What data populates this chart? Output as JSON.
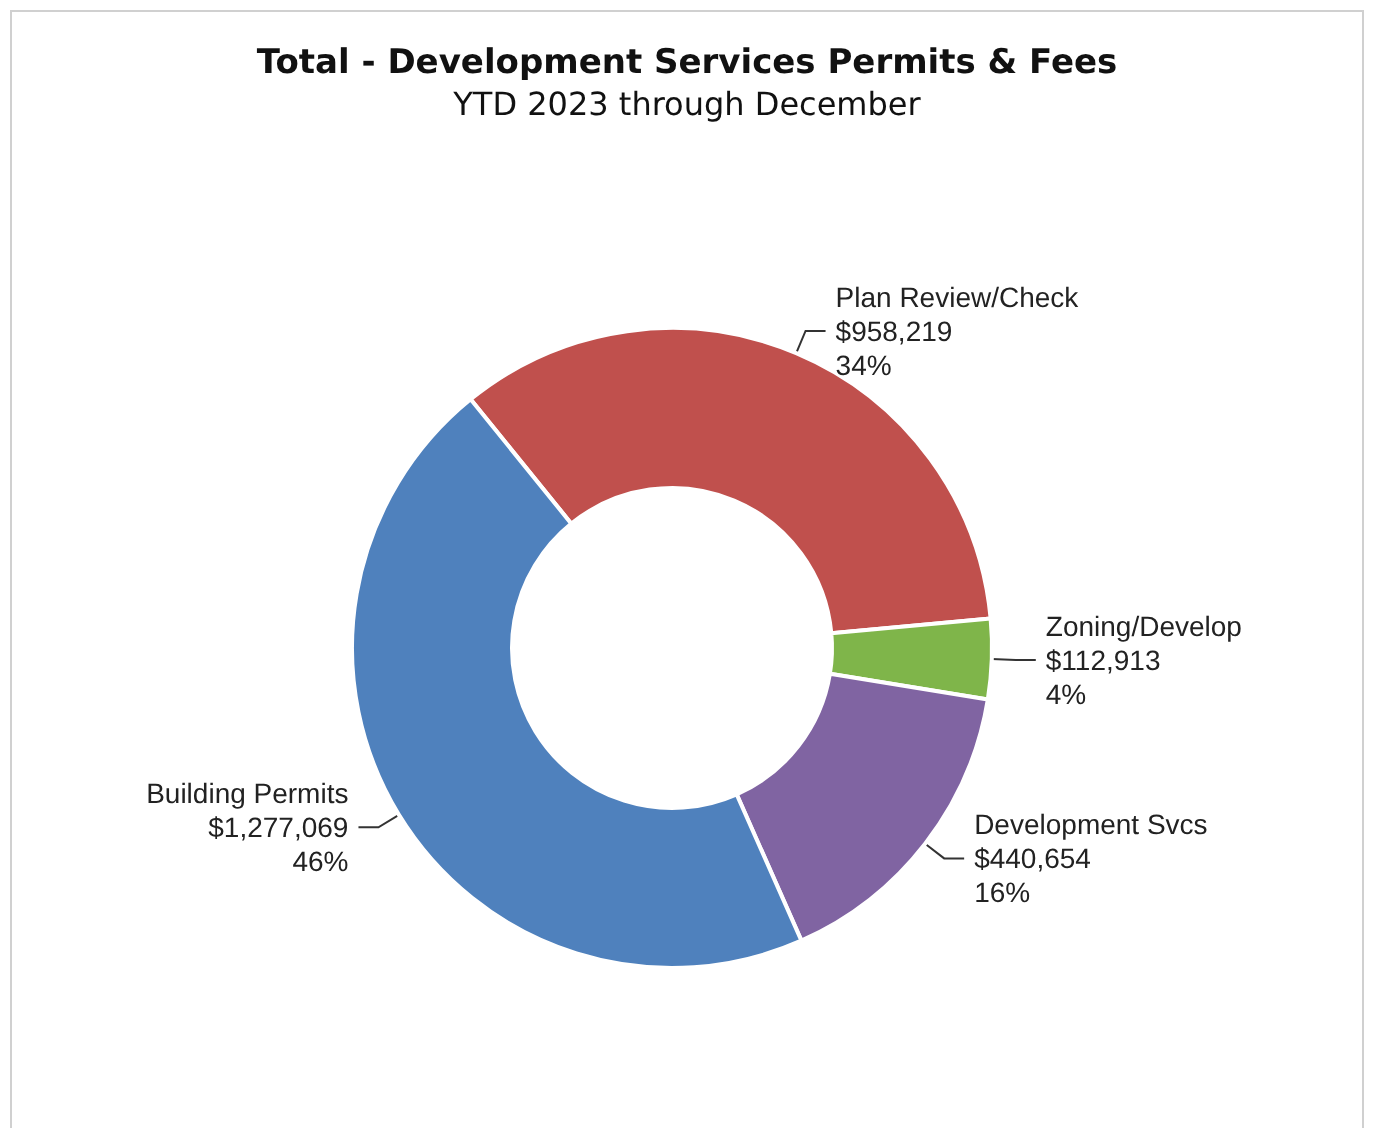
{
  "chart_data": {
    "type": "donut",
    "title": "Total - Development Services Permits & Fees",
    "subtitle": "YTD 2023 through December",
    "categories": [
      "Plan Review/Check",
      "Zoning/Develop",
      "Development Svcs",
      "Building Permits"
    ],
    "values": [
      958219,
      112913,
      440654,
      1277069
    ],
    "value_labels": [
      "$958,219\n34%",
      "$112,913\n4%",
      "$440,654\n16%",
      "$1,277,069\n46%"
    ],
    "colors": [
      "#c0504d",
      "#7fb54a",
      "#8064a2",
      "#4f81bd"
    ],
    "legend": false
  }
}
